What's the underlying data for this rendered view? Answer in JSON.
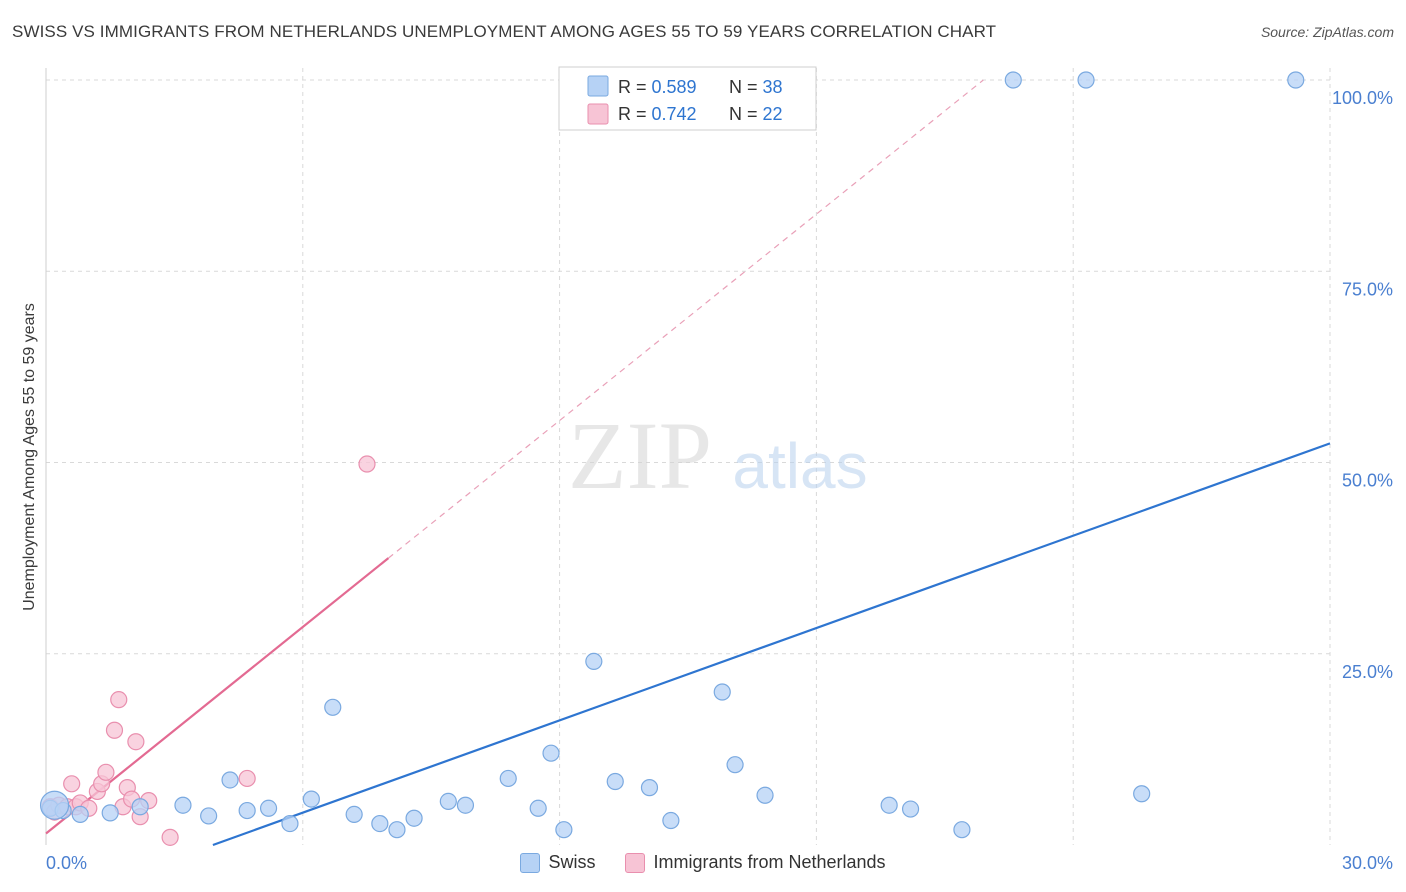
{
  "title": "SWISS VS IMMIGRANTS FROM NETHERLANDS UNEMPLOYMENT AMONG AGES 55 TO 59 YEARS CORRELATION CHART",
  "source": "Source: ZipAtlas.com",
  "watermark": {
    "zip": "ZIP",
    "atlas": "atlas"
  },
  "colors": {
    "swiss_fill": "#b6d2f5",
    "swiss_stroke": "#7aa9e0",
    "swiss_line": "#2e75d0",
    "nl_fill": "#f7c4d5",
    "nl_stroke": "#e98fae",
    "nl_line": "#e36a92",
    "grid": "#d9d9d9",
    "tick_label": "#4a7fd0"
  },
  "legend": {
    "rows": [
      {
        "r_label": "R = ",
        "r_value": "0.589",
        "n_label": "N = ",
        "n_value": "38"
      },
      {
        "r_label": "R = ",
        "r_value": "0.742",
        "n_label": "N = ",
        "n_value": "22"
      }
    ]
  },
  "chart_data": {
    "type": "scatter",
    "title": "SWISS VS IMMIGRANTS FROM NETHERLANDS UNEMPLOYMENT AMONG AGES 55 TO 59 YEARS CORRELATION CHART",
    "xlabel": "",
    "ylabel": "Unemployment Among Ages 55 to 59 years",
    "xlim": [
      0,
      30
    ],
    "ylim": [
      0,
      100
    ],
    "x_tick_labels": [
      "0.0%",
      "30.0%"
    ],
    "y_ticks": [
      25,
      50,
      75,
      100
    ],
    "y_tick_labels": [
      "25.0%",
      "50.0%",
      "75.0%",
      "100.0%"
    ],
    "grid": true,
    "series": [
      {
        "name": "Swiss",
        "r": 0.589,
        "n": 38,
        "points": [
          [
            0.1,
            4.8
          ],
          [
            0.4,
            4.5
          ],
          [
            0.8,
            4.0
          ],
          [
            1.5,
            4.2
          ],
          [
            2.2,
            5.0
          ],
          [
            3.2,
            5.2
          ],
          [
            3.8,
            3.8
          ],
          [
            4.3,
            8.5
          ],
          [
            4.7,
            4.5
          ],
          [
            5.2,
            4.8
          ],
          [
            5.7,
            2.8
          ],
          [
            6.2,
            6.0
          ],
          [
            6.7,
            18.0
          ],
          [
            7.2,
            4.0
          ],
          [
            7.8,
            2.8
          ],
          [
            8.2,
            2.0
          ],
          [
            8.6,
            3.5
          ],
          [
            9.4,
            5.7
          ],
          [
            9.8,
            5.2
          ],
          [
            10.8,
            8.7
          ],
          [
            11.5,
            4.8
          ],
          [
            11.8,
            12.0
          ],
          [
            12.1,
            2.0
          ],
          [
            12.8,
            24.0
          ],
          [
            13.3,
            8.3
          ],
          [
            14.1,
            7.5
          ],
          [
            14.6,
            3.2
          ],
          [
            15.8,
            20.0
          ],
          [
            16.1,
            10.5
          ],
          [
            16.8,
            6.5
          ],
          [
            19.7,
            5.2
          ],
          [
            20.2,
            4.7
          ],
          [
            21.4,
            2.0
          ],
          [
            22.6,
            100
          ],
          [
            24.3,
            100
          ],
          [
            25.6,
            6.7
          ],
          [
            29.2,
            100
          ],
          [
            0.2,
            5.2
          ]
        ],
        "trend": {
          "x0": 3.9,
          "y0": 0.0,
          "x1": 30.0,
          "y1": 52.5
        }
      },
      {
        "name": "Immigrants from Netherlands",
        "r": 0.742,
        "n": 22,
        "points": [
          [
            0.1,
            5.0
          ],
          [
            0.2,
            4.3
          ],
          [
            0.3,
            5.2
          ],
          [
            0.5,
            5.0
          ],
          [
            0.6,
            8.0
          ],
          [
            0.7,
            5.0
          ],
          [
            0.8,
            5.5
          ],
          [
            1.0,
            4.8
          ],
          [
            1.2,
            7.0
          ],
          [
            1.3,
            8.0
          ],
          [
            1.4,
            9.5
          ],
          [
            1.6,
            15.0
          ],
          [
            1.7,
            19.0
          ],
          [
            1.8,
            5.0
          ],
          [
            1.9,
            7.5
          ],
          [
            2.0,
            6.0
          ],
          [
            2.1,
            13.5
          ],
          [
            2.2,
            3.7
          ],
          [
            2.4,
            5.8
          ],
          [
            2.9,
            1.0
          ],
          [
            4.7,
            8.7
          ],
          [
            7.5,
            49.8
          ]
        ],
        "trend": {
          "x0": 0.0,
          "y0": 1.5,
          "x1": 8.0,
          "y1": 37.5
        },
        "trend_extension": {
          "x0": 8.0,
          "y0": 37.5,
          "x1": 21.9,
          "y1": 100
        }
      }
    ]
  },
  "bottom_legend": [
    "Swiss",
    "Immigrants from Netherlands"
  ]
}
